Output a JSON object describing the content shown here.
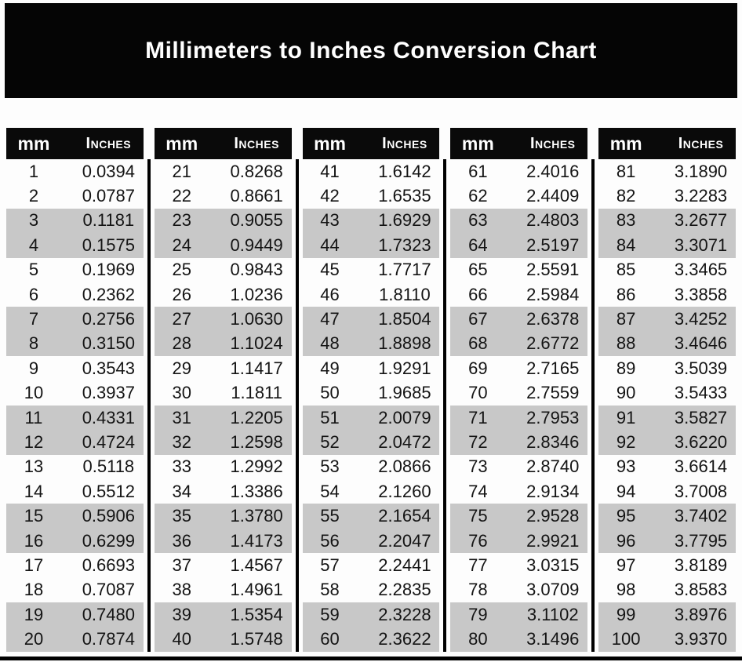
{
  "title": "Millimeters to Inches Conversion Chart",
  "colors": {
    "title_bg": "#050505",
    "header_bg": "#0a0a0a",
    "header_text": "#ffffff",
    "band_gray": "#c8c8c8",
    "row_white": "#fdfdfd",
    "separator": "#000000",
    "page_bg": "#fdfdfd"
  },
  "chart_data": {
    "type": "table",
    "title": "Millimeters to Inches Conversion Chart",
    "columns": [
      "mm",
      "Inches"
    ],
    "column_groups": 5,
    "rows_per_column": 20,
    "mm": [
      1,
      2,
      3,
      4,
      5,
      6,
      7,
      8,
      9,
      10,
      11,
      12,
      13,
      14,
      15,
      16,
      17,
      18,
      19,
      20,
      21,
      22,
      23,
      24,
      25,
      26,
      27,
      28,
      29,
      30,
      31,
      32,
      33,
      34,
      35,
      36,
      37,
      38,
      39,
      40,
      41,
      42,
      43,
      44,
      45,
      46,
      47,
      48,
      49,
      50,
      51,
      52,
      53,
      54,
      55,
      56,
      57,
      58,
      59,
      60,
      61,
      62,
      63,
      64,
      65,
      66,
      67,
      68,
      69,
      70,
      71,
      72,
      73,
      74,
      75,
      76,
      77,
      78,
      79,
      80,
      81,
      82,
      83,
      84,
      85,
      86,
      87,
      88,
      89,
      90,
      91,
      92,
      93,
      94,
      95,
      96,
      97,
      98,
      99,
      100
    ],
    "inches": [
      "0.0394",
      "0.0787",
      "0.1181",
      "0.1575",
      "0.1969",
      "0.2362",
      "0.2756",
      "0.3150",
      "0.3543",
      "0.3937",
      "0.4331",
      "0.4724",
      "0.5118",
      "0.5512",
      "0.5906",
      "0.6299",
      "0.6693",
      "0.7087",
      "0.7480",
      "0.7874",
      "0.8268",
      "0.8661",
      "0.9055",
      "0.9449",
      "0.9843",
      "1.0236",
      "1.0630",
      "1.1024",
      "1.1417",
      "1.1811",
      "1.2205",
      "1.2598",
      "1.2992",
      "1.3386",
      "1.3780",
      "1.4173",
      "1.4567",
      "1.4961",
      "1.5354",
      "1.5748",
      "1.6142",
      "1.6535",
      "1.6929",
      "1.7323",
      "1.7717",
      "1.8110",
      "1.8504",
      "1.8898",
      "1.9291",
      "1.9685",
      "2.0079",
      "2.0472",
      "2.0866",
      "2.1260",
      "2.1654",
      "2.2047",
      "2.2441",
      "2.2835",
      "2.3228",
      "2.3622",
      "2.4016",
      "2.4409",
      "2.4803",
      "2.5197",
      "2.5591",
      "2.5984",
      "2.6378",
      "2.6772",
      "2.7165",
      "2.7559",
      "2.7953",
      "2.8346",
      "2.8740",
      "2.9134",
      "2.9528",
      "2.9921",
      "3.0315",
      "3.0709",
      "3.1102",
      "3.1496",
      "3.1890",
      "3.2283",
      "3.2677",
      "3.3071",
      "3.3465",
      "3.3858",
      "3.4252",
      "3.4646",
      "3.5039",
      "3.5433",
      "3.5827",
      "3.6220",
      "3.6614",
      "3.7008",
      "3.7402",
      "3.7795",
      "3.8189",
      "3.8583",
      "3.8976",
      "3.9370"
    ]
  }
}
